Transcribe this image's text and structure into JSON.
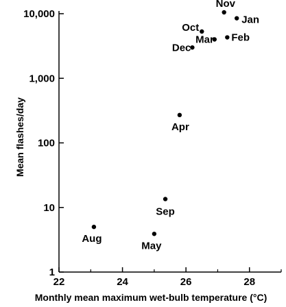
{
  "chart_data": {
    "type": "scatter",
    "title": "",
    "xlabel": "Monthly mean maximum wet-bulb temperature (°C)",
    "ylabel": "Mean flashes/day",
    "xlim": [
      22,
      29
    ],
    "ylim": [
      1,
      10000
    ],
    "yscale": "log",
    "x_ticks": [
      22,
      24,
      26,
      28
    ],
    "x_tick_labels": [
      "22",
      "24",
      "26",
      "28"
    ],
    "y_ticks": [
      1,
      10,
      100,
      1000,
      10000
    ],
    "y_tick_labels": [
      "1",
      "10",
      "100",
      "1,000",
      "10,000"
    ],
    "grid": false,
    "legend": "none",
    "marker_color": "#000000",
    "points": [
      {
        "label": "Nov",
        "x": 27.2,
        "y": 10500
      },
      {
        "label": "Jan",
        "x": 27.6,
        "y": 8500
      },
      {
        "label": "Oct",
        "x": 26.5,
        "y": 5300
      },
      {
        "label": "Feb",
        "x": 27.3,
        "y": 4300
      },
      {
        "label": "Mar",
        "x": 26.9,
        "y": 4000
      },
      {
        "label": "Dec",
        "x": 26.2,
        "y": 3000
      },
      {
        "label": "Apr",
        "x": 25.8,
        "y": 270
      },
      {
        "label": "Sep",
        "x": 25.35,
        "y": 13.5
      },
      {
        "label": "Aug",
        "x": 23.1,
        "y": 5
      },
      {
        "label": "May",
        "x": 25.0,
        "y": 3.9
      }
    ]
  }
}
